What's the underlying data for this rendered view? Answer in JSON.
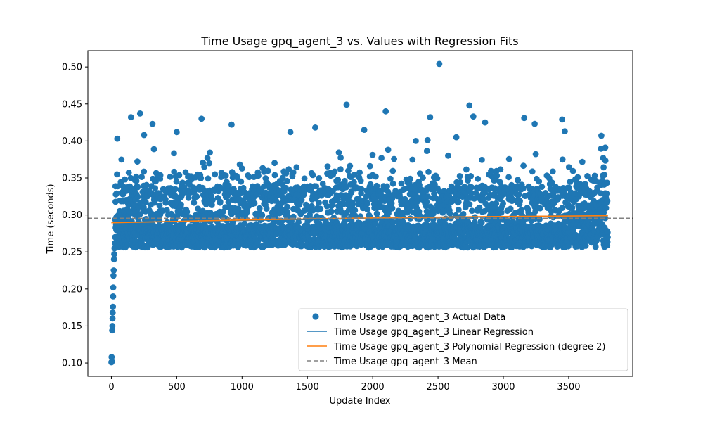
{
  "chart_data": {
    "type": "scatter",
    "title": "Time Usage gpq_agent_3 vs. Values with Regression Fits",
    "xlabel": "Update Index",
    "ylabel": "Time (seconds)",
    "xlim": [
      -180,
      3990
    ],
    "ylim": [
      0.082,
      0.522
    ],
    "xticks": [
      0,
      500,
      1000,
      1500,
      2000,
      2500,
      3000,
      3500
    ],
    "yticks": [
      0.1,
      0.15,
      0.2,
      0.25,
      0.3,
      0.35,
      0.4,
      0.45,
      0.5
    ],
    "ytick_labels": [
      "0.10",
      "0.15",
      "0.20",
      "0.25",
      "0.30",
      "0.35",
      "0.40",
      "0.45",
      "0.50"
    ],
    "grid": false,
    "legend_position": "lower-right",
    "colors": {
      "scatter": "#1f77b4",
      "linear": "#1f77b4",
      "poly": "#ff7f0e",
      "mean": "#808080"
    },
    "series": [
      {
        "name": "Time Usage gpq_agent_3 Actual Data",
        "kind": "scatter",
        "num_points": 3800,
        "warmup": [
          {
            "x": 0,
            "y": 0.101
          },
          {
            "x": 2,
            "y": 0.108
          },
          {
            "x": 4,
            "y": 0.102
          },
          {
            "x": 6,
            "y": 0.144
          },
          {
            "x": 8,
            "y": 0.15
          },
          {
            "x": 9,
            "y": 0.16
          },
          {
            "x": 10,
            "y": 0.168
          },
          {
            "x": 12,
            "y": 0.176
          },
          {
            "x": 13,
            "y": 0.19
          },
          {
            "x": 14,
            "y": 0.202
          },
          {
            "x": 16,
            "y": 0.218
          },
          {
            "x": 18,
            "y": 0.225
          },
          {
            "x": 20,
            "y": 0.24
          },
          {
            "x": 22,
            "y": 0.247
          },
          {
            "x": 24,
            "y": 0.255
          },
          {
            "x": 26,
            "y": 0.262
          },
          {
            "x": 28,
            "y": 0.27
          }
        ],
        "typical_range": [
          0.254,
          0.36
        ],
        "outliers": [
          {
            "x": 45,
            "y": 0.403
          },
          {
            "x": 150,
            "y": 0.432
          },
          {
            "x": 220,
            "y": 0.437
          },
          {
            "x": 315,
            "y": 0.423
          },
          {
            "x": 250,
            "y": 0.408
          },
          {
            "x": 690,
            "y": 0.43
          },
          {
            "x": 500,
            "y": 0.412
          },
          {
            "x": 1370,
            "y": 0.412
          },
          {
            "x": 1560,
            "y": 0.418
          },
          {
            "x": 1800,
            "y": 0.449
          },
          {
            "x": 1935,
            "y": 0.415
          },
          {
            "x": 2100,
            "y": 0.44
          },
          {
            "x": 2440,
            "y": 0.432
          },
          {
            "x": 2510,
            "y": 0.504
          },
          {
            "x": 2740,
            "y": 0.448
          },
          {
            "x": 2770,
            "y": 0.433
          },
          {
            "x": 2860,
            "y": 0.425
          },
          {
            "x": 3160,
            "y": 0.431
          },
          {
            "x": 3240,
            "y": 0.423
          },
          {
            "x": 3450,
            "y": 0.429
          },
          {
            "x": 3470,
            "y": 0.413
          },
          {
            "x": 3750,
            "y": 0.407
          },
          {
            "x": 3780,
            "y": 0.391
          },
          {
            "x": 2330,
            "y": 0.4
          },
          {
            "x": 2420,
            "y": 0.401
          },
          {
            "x": 2640,
            "y": 0.405
          },
          {
            "x": 920,
            "y": 0.422
          }
        ]
      },
      {
        "name": "Time Usage gpq_agent_3 Linear Regression",
        "kind": "line",
        "x": [
          0,
          3800
        ],
        "y": [
          0.29,
          0.2995
        ]
      },
      {
        "name": "Time Usage gpq_agent_3 Polynomial Regression (degree 2)",
        "kind": "line",
        "x": [
          0,
          950,
          1900,
          2850,
          3800
        ],
        "y": [
          0.2895,
          0.293,
          0.2958,
          0.2978,
          0.299
        ]
      },
      {
        "name": "Time Usage gpq_agent_3 Mean",
        "kind": "hline",
        "y": 0.2955
      }
    ]
  }
}
